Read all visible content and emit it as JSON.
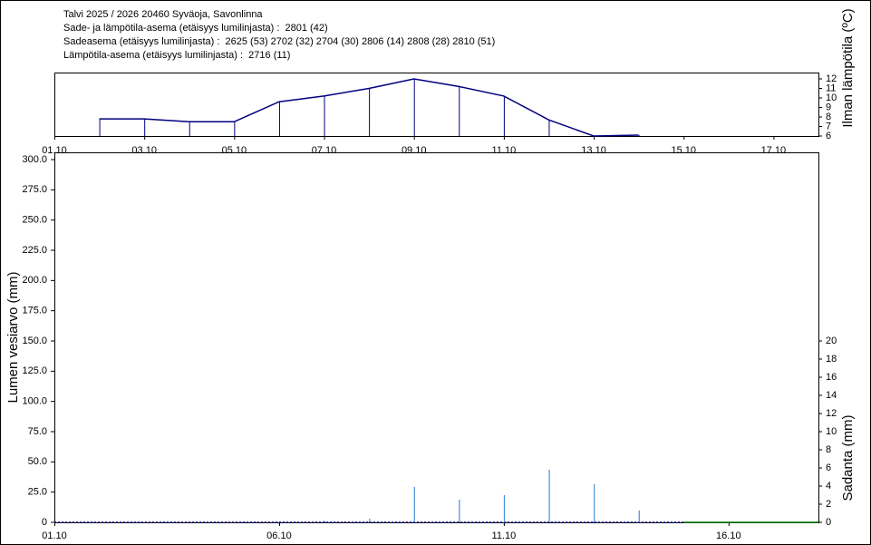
{
  "chart_data": [
    {
      "type": "line",
      "title": "Talvi 2025 / 2026 20460 Syväoja, Savonlinna",
      "subtitles": [
        "Sade- ja lämpötila-asema (etäisyys lumilinjasta) :  2801 (42)",
        "Sadeasema (etäisyys lumilinjasta) :  2625 (53) 2702 (32) 2704 (30) 2806 (14) 2808 (28) 2810 (51)",
        "Lämpötila-asema (etäisyys lumilinjasta) :  2716 (11)"
      ],
      "y2label": "Ilman lämpötila (ºC)",
      "x": [
        "01.10",
        null,
        "03.10",
        null,
        "05.10",
        null,
        "07.10",
        null,
        "09.10",
        null,
        "11.10",
        null,
        "13.10",
        null,
        "15.10",
        null,
        "17.10",
        null
      ],
      "series": [
        {
          "color": "#000080",
          "axis": "y2",
          "values": [
            null,
            7.8,
            7.8,
            7.5,
            7.5,
            9.6,
            10.2,
            11.0,
            12.0,
            11.2,
            10.2,
            7.7,
            6.0,
            6.1,
            null,
            null,
            null,
            null
          ]
        }
      ],
      "y2lim": [
        6,
        12
      ],
      "y2ticks": [
        6,
        7,
        8,
        9,
        10,
        11,
        12
      ]
    },
    {
      "type": "combo",
      "ylabel": "Lumen vesiarvo (mm)",
      "y2label": "Sadanta (mm)",
      "x": [
        "01.10",
        null,
        null,
        null,
        null,
        "06.10",
        null,
        null,
        null,
        null,
        "11.10",
        null,
        null,
        null,
        null,
        "16.10",
        null,
        null
      ],
      "series": [
        {
          "type": "line",
          "color": "#000080",
          "dashed": true,
          "values": [
            0,
            0,
            0,
            0,
            0,
            0,
            0,
            0,
            0,
            0,
            0,
            0,
            0,
            0,
            0,
            null,
            null,
            null
          ]
        },
        {
          "type": "line",
          "color": "#008000",
          "values": [
            null,
            null,
            null,
            null,
            null,
            null,
            null,
            null,
            null,
            null,
            null,
            null,
            null,
            null,
            0,
            0,
            0,
            0
          ]
        },
        {
          "type": "bar",
          "axis": "y2",
          "color": "#4a90d9",
          "values": [
            0,
            0,
            0,
            0,
            0,
            0,
            0.2,
            0.4,
            3.9,
            2.5,
            3.0,
            5.8,
            4.2,
            1.3,
            null,
            null,
            null,
            null
          ]
        }
      ],
      "ylim": [
        0,
        300
      ],
      "yticks": [
        0,
        {
          "value": 25,
          "label": "25.0"
        },
        {
          "value": 50,
          "label": "50.0"
        },
        {
          "value": 75,
          "label": "75.0"
        },
        {
          "value": 100,
          "label": "100.0"
        },
        {
          "value": 125,
          "label": "125.0"
        },
        {
          "value": 150,
          "label": "150.0"
        },
        {
          "value": 175,
          "label": "175.0"
        },
        {
          "value": 200,
          "label": "200.0"
        },
        {
          "value": 225,
          "label": "225.0"
        },
        {
          "value": 250,
          "label": "250.0"
        },
        {
          "value": 275,
          "label": "275.0"
        },
        {
          "value": 300,
          "label": "300.0"
        }
      ],
      "y2lim": [
        0,
        40
      ],
      "y2ticks": [
        0,
        2,
        4,
        6,
        8,
        10,
        12,
        14,
        16,
        18,
        20
      ]
    }
  ]
}
